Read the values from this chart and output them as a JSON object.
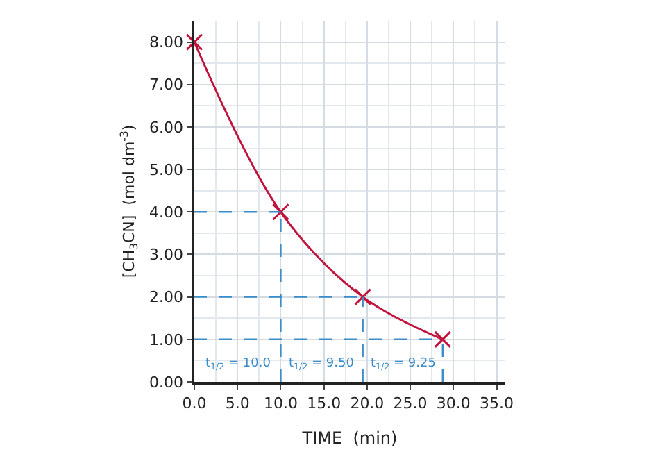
{
  "chart_data": {
    "type": "line",
    "xlabel": "TIME  (min)",
    "ylabel": "[CH$_{3}$CN]  (mol dm$^{-3}$)",
    "x": [
      0,
      10,
      19.5,
      28.75
    ],
    "series": [
      {
        "color": "#c0143c",
        "values": [
          8,
          4,
          2,
          1
        ]
      }
    ],
    "marker": "cross",
    "xlim": [
      0,
      36
    ],
    "ylim": [
      0,
      8.5
    ],
    "xticks": [
      {
        "value": 0,
        "label": "0.0"
      },
      {
        "value": 5,
        "label": "5.0"
      },
      {
        "value": 10,
        "label": "10.0"
      },
      {
        "value": 15,
        "label": "15.0"
      },
      {
        "value": 20,
        "label": "20.0"
      },
      {
        "value": 25,
        "label": "25.0"
      },
      {
        "value": 30,
        "label": "30.0"
      },
      {
        "value": 35,
        "label": "35.0"
      }
    ],
    "yticks": [
      {
        "value": 0,
        "label": "0.00"
      },
      {
        "value": 1,
        "label": "1.00"
      },
      {
        "value": 2,
        "label": "2.00"
      },
      {
        "value": 3,
        "label": "3.00"
      },
      {
        "value": 4,
        "label": "4.00"
      },
      {
        "value": 5,
        "label": "5.00"
      },
      {
        "value": 6,
        "label": "6.00"
      },
      {
        "value": 7,
        "label": "7.00"
      },
      {
        "value": 8,
        "label": "8.00"
      }
    ],
    "grid": true,
    "ref_lines": [
      {
        "axis": "y",
        "value": 4,
        "color": "#3a8dc8",
        "line_style": "dashed"
      },
      {
        "axis": "y",
        "value": 2,
        "color": "#3a8dc8",
        "line_style": "dashed"
      },
      {
        "axis": "y",
        "value": 1,
        "color": "#3a8dc8",
        "line_style": "dashed"
      },
      {
        "axis": "x",
        "value": 10,
        "color": "#3a8dc8",
        "line_style": "dashed"
      },
      {
        "axis": "x",
        "value": 19.5,
        "color": "#3a8dc8",
        "line_style": "dashed"
      },
      {
        "axis": "x",
        "value": 28.75,
        "color": "#3a8dc8",
        "line_style": "dashed"
      }
    ],
    "annotations": [
      "t$_{1/2}$ = 10.0",
      "t$_{1/2}$ = 9.50",
      "t$_{1/2}$ = 9.25"
    ]
  }
}
